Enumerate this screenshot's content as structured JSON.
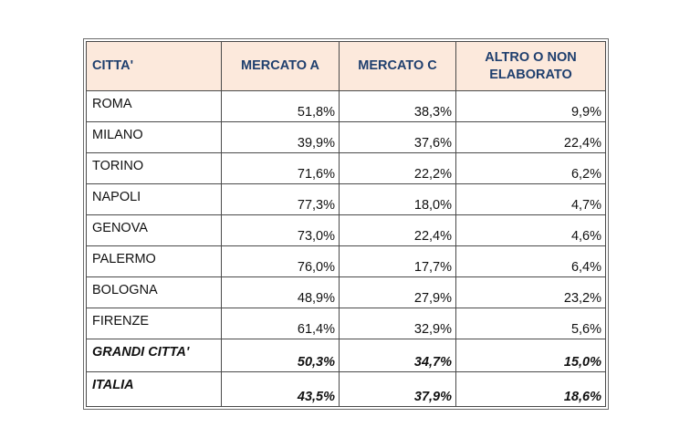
{
  "table": {
    "headers": [
      "CITTA'",
      "MERCATO A",
      "MERCATO C",
      "ALTRO O NON ELABORATO"
    ],
    "header_colors": {
      "text": "#1f3f6e",
      "background": "#fce9dc"
    },
    "rows": [
      {
        "city": "ROMA",
        "mercato_a": "51,8%",
        "mercato_c": "38,3%",
        "altro": "9,9%"
      },
      {
        "city": "MILANO",
        "mercato_a": "39,9%",
        "mercato_c": "37,6%",
        "altro": "22,4%"
      },
      {
        "city": "TORINO",
        "mercato_a": "71,6%",
        "mercato_c": "22,2%",
        "altro": "6,2%"
      },
      {
        "city": "NAPOLI",
        "mercato_a": "77,3%",
        "mercato_c": "18,0%",
        "altro": "4,7%"
      },
      {
        "city": "GENOVA",
        "mercato_a": "73,0%",
        "mercato_c": "22,4%",
        "altro": "4,6%"
      },
      {
        "city": "PALERMO",
        "mercato_a": "76,0%",
        "mercato_c": "17,7%",
        "altro": "6,4%"
      },
      {
        "city": "BOLOGNA",
        "mercato_a": "48,9%",
        "mercato_c": "27,9%",
        "altro": "23,2%"
      },
      {
        "city": "FIRENZE",
        "mercato_a": "61,4%",
        "mercato_c": "32,9%",
        "altro": "5,6%"
      }
    ],
    "totals": [
      {
        "city": "GRANDI CITTA'",
        "mercato_a": "50,3%",
        "mercato_c": "34,7%",
        "altro": "15,0%"
      },
      {
        "city": "ITALIA",
        "mercato_a": "43,5%",
        "mercato_c": "37,9%",
        "altro": "18,6%"
      }
    ]
  }
}
